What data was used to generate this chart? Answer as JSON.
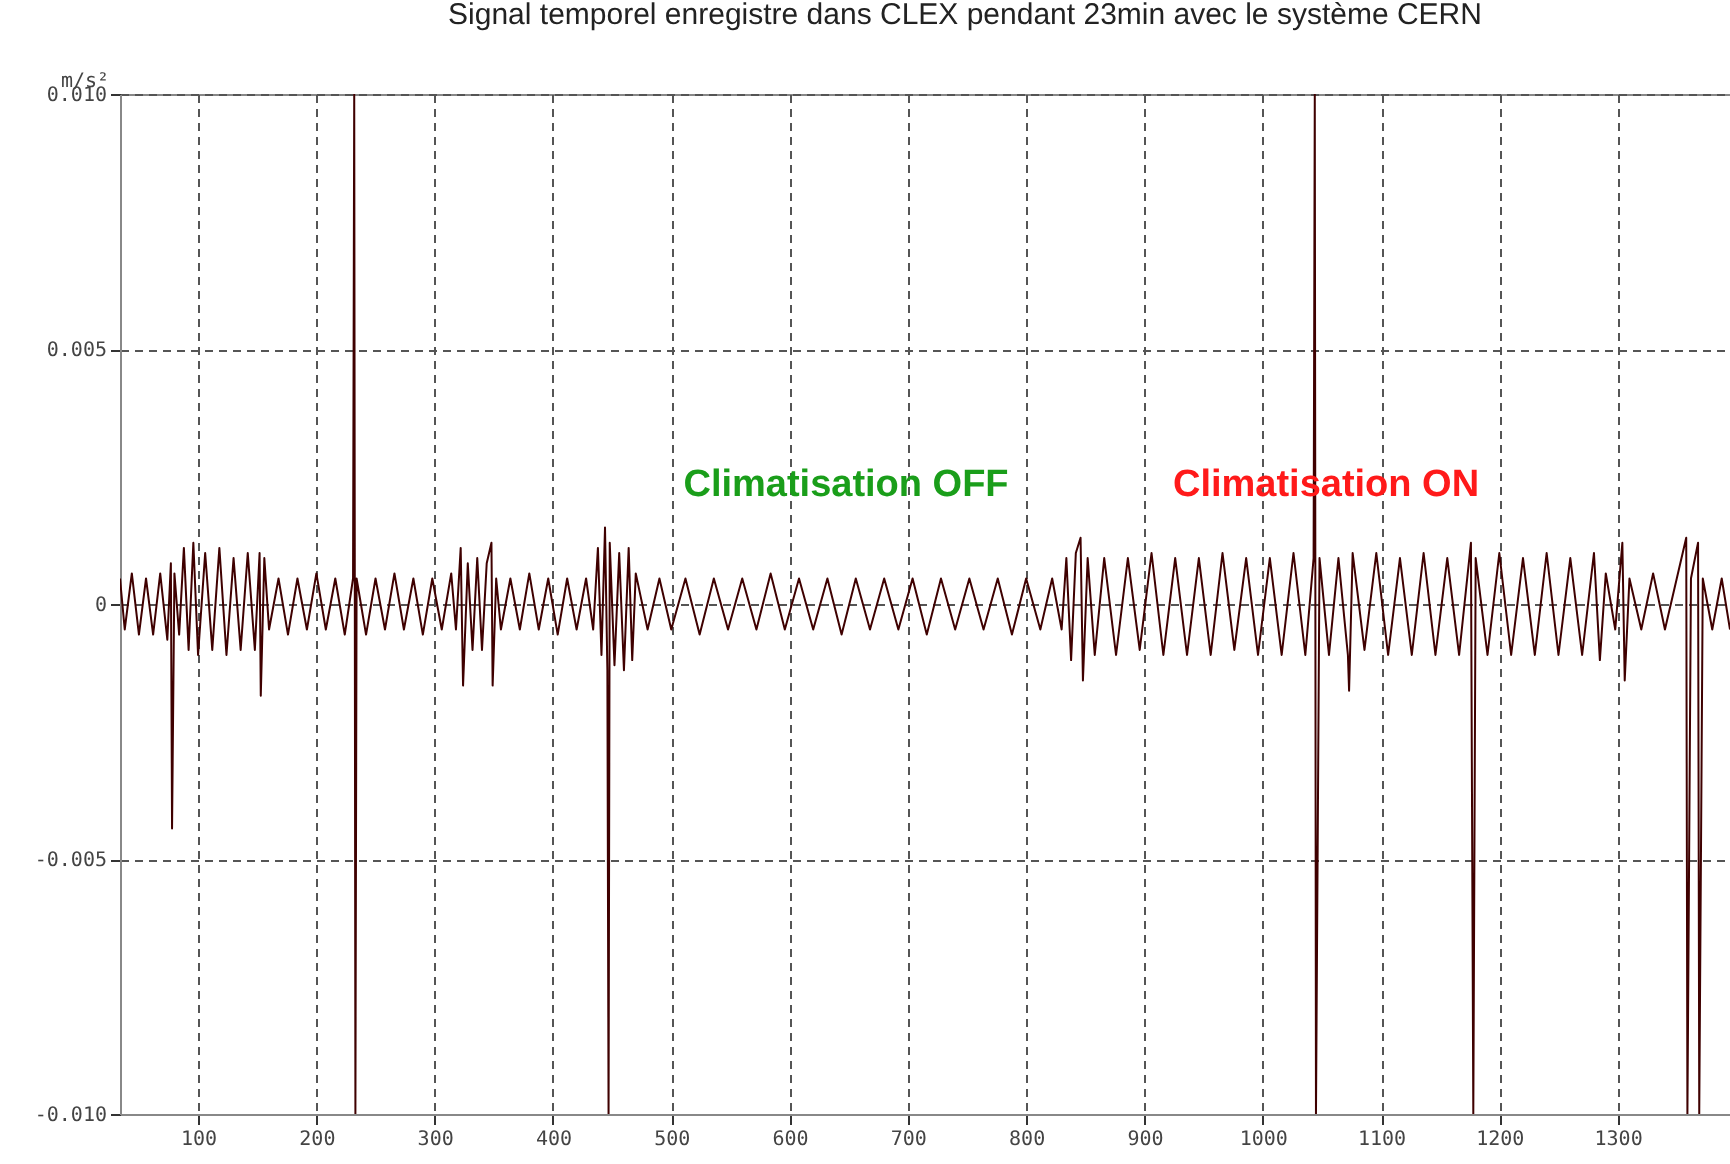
{
  "chart_data": {
    "type": "line",
    "title": "Signal temporel enregistre dans CLEX pendant 23min avec le système CERN",
    "ylabel": "m/s²",
    "xlim": [
      34,
      1395
    ],
    "xticks": [
      100,
      200,
      300,
      400,
      500,
      600,
      700,
      800,
      900,
      1000,
      1100,
      1200,
      1300
    ],
    "ylim": [
      -0.01,
      0.01
    ],
    "yticks": [
      {
        "value": -0.01,
        "label": "-0.010"
      },
      -0.005,
      0,
      0.005,
      {
        "value": 0.01,
        "label": "0.010"
      }
    ],
    "grid": true,
    "line_style": "solid",
    "annotations": [
      "Climatisation OFF",
      "Climatisation ON"
    ],
    "x": [
      34,
      38,
      44,
      50,
      56,
      62,
      68,
      74,
      77,
      78,
      80,
      84,
      88,
      92,
      96,
      100,
      106,
      112,
      118,
      124,
      130,
      136,
      142,
      148,
      152,
      153,
      156,
      160,
      168,
      176,
      184,
      192,
      200,
      208,
      216,
      224,
      231,
      232,
      233,
      234,
      242,
      250,
      258,
      266,
      274,
      282,
      290,
      298,
      306,
      314,
      318,
      322,
      324,
      328,
      332,
      336,
      340,
      344,
      348,
      349,
      352,
      356,
      364,
      372,
      380,
      388,
      396,
      404,
      412,
      420,
      428,
      434,
      438,
      441,
      444,
      446,
      447,
      448,
      452,
      456,
      460,
      464,
      467,
      470,
      480,
      490,
      500,
      512,
      524,
      536,
      548,
      560,
      572,
      584,
      596,
      608,
      620,
      632,
      644,
      656,
      668,
      680,
      692,
      704,
      716,
      728,
      740,
      752,
      764,
      776,
      788,
      800,
      812,
      822,
      830,
      834,
      838,
      842,
      846,
      848,
      852,
      858,
      866,
      876,
      886,
      896,
      906,
      916,
      926,
      936,
      946,
      956,
      966,
      976,
      986,
      996,
      1006,
      1016,
      1026,
      1036,
      1043,
      1044,
      1045,
      1048,
      1056,
      1064,
      1072,
      1073,
      1076,
      1086,
      1096,
      1106,
      1116,
      1126,
      1136,
      1146,
      1156,
      1166,
      1176,
      1178,
      1180,
      1190,
      1200,
      1210,
      1220,
      1230,
      1240,
      1250,
      1260,
      1270,
      1280,
      1285,
      1290,
      1298,
      1304,
      1306,
      1310,
      1320,
      1330,
      1340,
      1350,
      1358,
      1359,
      1362,
      1368,
      1369,
      1372,
      1380,
      1388,
      1395
    ],
    "series": [
      {
        "color": "#3f0000",
        "values": [
          0.0005,
          -0.0005,
          0.0006,
          -0.0006,
          0.0005,
          -0.0006,
          0.0006,
          -0.0007,
          0.0008,
          -0.0044,
          0.0006,
          -0.0006,
          0.0011,
          -0.0009,
          0.0012,
          -0.001,
          0.001,
          -0.0009,
          0.0011,
          -0.001,
          0.0009,
          -0.0009,
          0.001,
          -0.0009,
          0.001,
          -0.0018,
          0.0009,
          -0.0005,
          0.0005,
          -0.0006,
          0.0005,
          -0.0005,
          0.0006,
          -0.0005,
          0.0005,
          -0.0006,
          0.0005,
          0.01,
          -0.01,
          0.0005,
          -0.0006,
          0.0005,
          -0.0005,
          0.0006,
          -0.0005,
          0.0005,
          -0.0006,
          0.0005,
          -0.0005,
          0.0006,
          -0.0005,
          0.0011,
          -0.0016,
          0.0008,
          -0.0009,
          0.0009,
          -0.0009,
          0.0008,
          0.0012,
          -0.0016,
          0.0005,
          -0.0005,
          0.0005,
          -0.0005,
          0.0006,
          -0.0005,
          0.0005,
          -0.0006,
          0.0005,
          -0.0005,
          0.0005,
          -0.0005,
          0.0011,
          -0.001,
          0.0015,
          -0.0013,
          -0.01,
          0.0012,
          -0.0012,
          0.001,
          -0.0013,
          0.0011,
          -0.0011,
          0.0006,
          -0.0005,
          0.0005,
          -0.0005,
          0.0005,
          -0.0006,
          0.0005,
          -0.0005,
          0.0005,
          -0.0005,
          0.0006,
          -0.0005,
          0.0005,
          -0.0005,
          0.0005,
          -0.0006,
          0.0005,
          -0.0005,
          0.0005,
          -0.0005,
          0.0005,
          -0.0006,
          0.0005,
          -0.0005,
          0.0005,
          -0.0005,
          0.0005,
          -0.0006,
          0.0005,
          -0.0005,
          0.0005,
          -0.0005,
          0.0009,
          -0.0011,
          0.001,
          0.0013,
          -0.0015,
          0.0009,
          -0.001,
          0.0009,
          -0.001,
          0.0009,
          -0.0009,
          0.001,
          -0.001,
          0.0009,
          -0.001,
          0.0009,
          -0.001,
          0.001,
          -0.0009,
          0.0009,
          -0.001,
          0.0009,
          -0.001,
          0.001,
          -0.001,
          0.0009,
          0.01,
          -0.01,
          0.0009,
          -0.001,
          0.0009,
          -0.001,
          -0.0017,
          0.001,
          -0.0009,
          0.001,
          -0.001,
          0.0009,
          -0.001,
          0.001,
          -0.001,
          0.0009,
          -0.001,
          0.0012,
          -0.01,
          0.0009,
          -0.001,
          0.001,
          -0.001,
          0.0009,
          -0.001,
          0.001,
          -0.001,
          0.0009,
          -0.001,
          0.001,
          -0.0011,
          0.0006,
          -0.0005,
          0.0012,
          -0.0015,
          0.0005,
          -0.0005,
          0.0006,
          -0.0005,
          0.0005,
          0.0013,
          -0.01,
          0.0005,
          0.0012,
          -0.01,
          0.0005,
          -0.0005,
          0.0005,
          -0.0005
        ]
      }
    ]
  }
}
